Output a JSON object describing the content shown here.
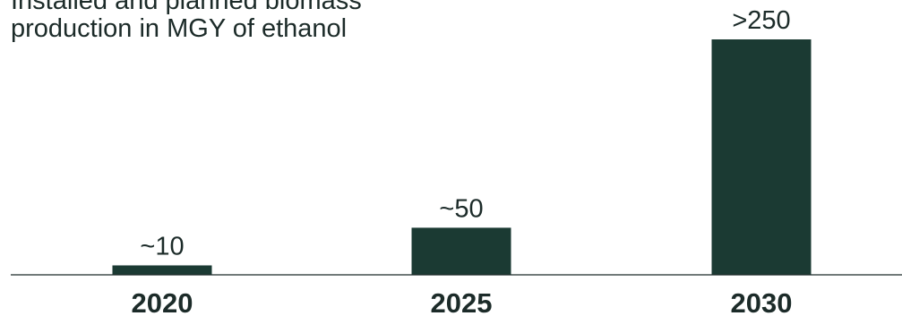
{
  "chart_data": {
    "type": "bar",
    "title_lines": [
      "Installed and planned biomass",
      "production in MGY of ethanol"
    ],
    "categories": [
      "2020",
      "2025",
      "2030"
    ],
    "values": [
      10,
      50,
      250
    ],
    "value_labels": [
      "~10",
      "~50",
      ">250"
    ],
    "xlabel": "",
    "ylabel": "",
    "grid": false,
    "legend": "none",
    "colors": {
      "bar": "#1b3a33",
      "text": "#1c2b29",
      "axis": "#1c2b29"
    }
  }
}
